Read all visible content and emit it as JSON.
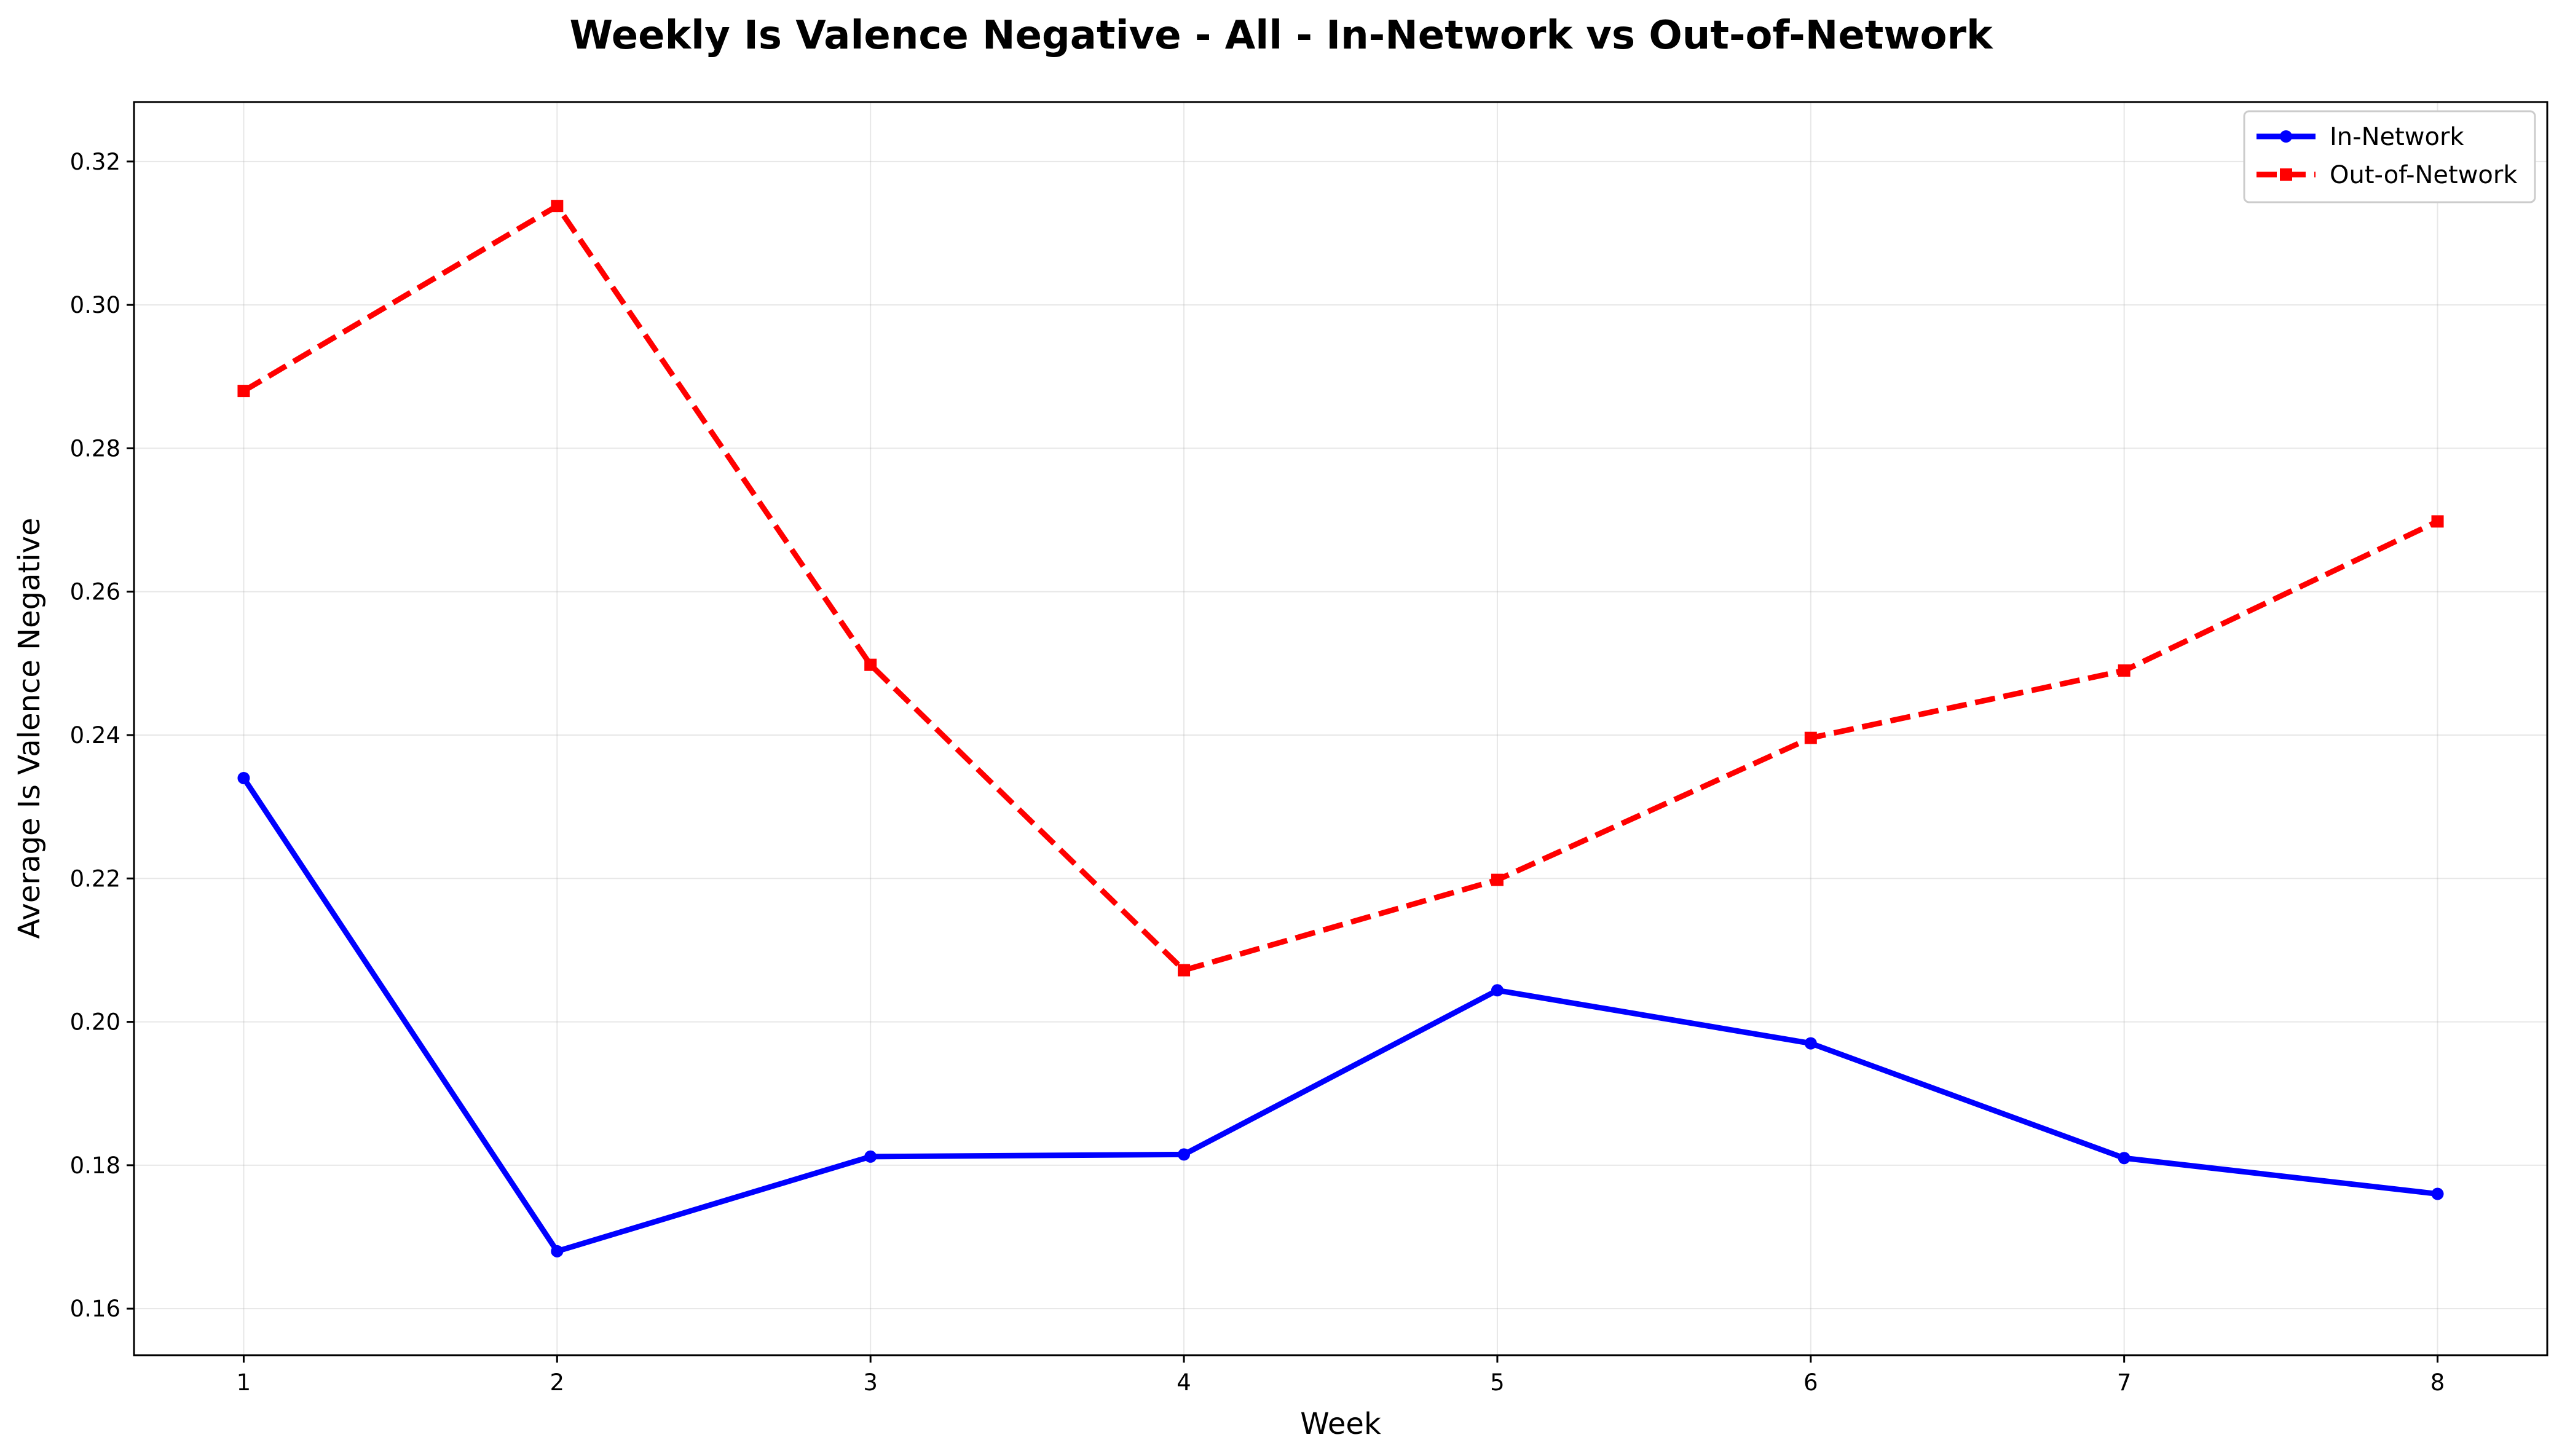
{
  "chart_data": {
    "type": "line",
    "title": "Weekly Is Valence Negative - All - In-Network vs Out-of-Network",
    "xlabel": "Week",
    "ylabel": "Average Is Valence Negative",
    "x": [
      1,
      2,
      3,
      4,
      5,
      6,
      7,
      8
    ],
    "xticks": [
      "1",
      "2",
      "3",
      "4",
      "5",
      "6",
      "7",
      "8"
    ],
    "yticks": [
      "0.16",
      "0.18",
      "0.20",
      "0.22",
      "0.24",
      "0.26",
      "0.28",
      "0.30",
      "0.32"
    ],
    "ytick_values": [
      0.16,
      0.18,
      0.2,
      0.22,
      0.24,
      0.26,
      0.28,
      0.3,
      0.32
    ],
    "xlim": [
      0.65,
      8.35
    ],
    "ylim": [
      0.1535,
      0.3283
    ],
    "grid": true,
    "legend_position": "top-right",
    "series": [
      {
        "name": "In-Network",
        "color": "#0000ff",
        "line_style": "solid",
        "marker": "circle",
        "values": [
          0.234,
          0.168,
          0.1812,
          0.1815,
          0.2044,
          0.197,
          0.181,
          0.176
        ]
      },
      {
        "name": "Out-of-Network",
        "color": "#ff0000",
        "line_style": "dashed",
        "marker": "square",
        "values": [
          0.288,
          0.3138,
          0.2498,
          0.2072,
          0.2198,
          0.2396,
          0.249,
          0.2698
        ]
      }
    ]
  }
}
